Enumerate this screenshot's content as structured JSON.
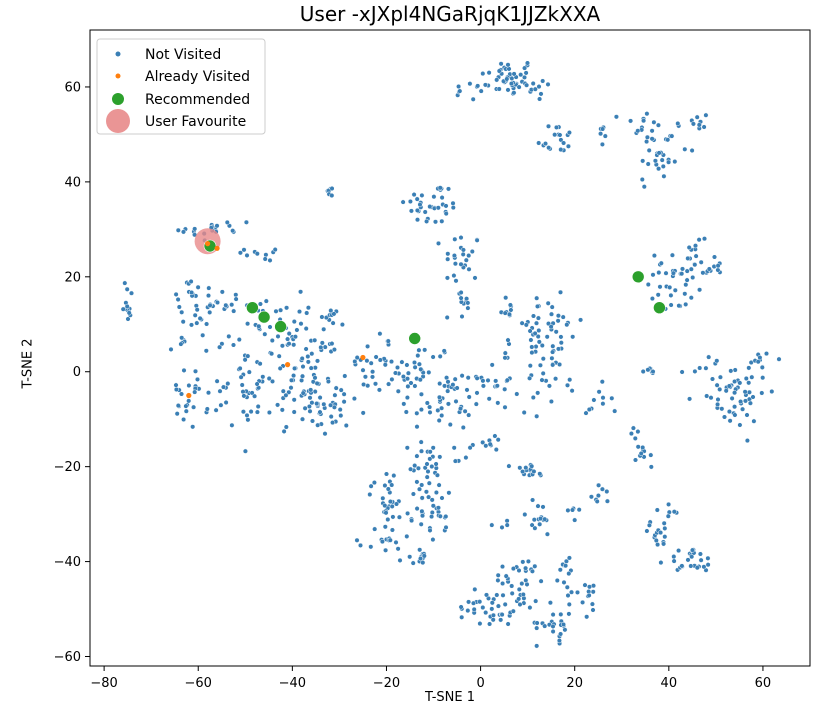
{
  "chart_data": {
    "type": "scatter",
    "title": "User -xJXpl4NGaRjqK1JJZkXXA",
    "xlabel": "T-SNE 1",
    "ylabel": "T-SNE 2",
    "xlim": [
      -83,
      70
    ],
    "ylim": [
      -62,
      72
    ],
    "xticks": [
      -80,
      -60,
      -40,
      -20,
      0,
      20,
      40,
      60
    ],
    "yticks": [
      -60,
      -40,
      -20,
      0,
      20,
      40,
      60
    ],
    "grid": false,
    "legend_position": "top-left",
    "colors": {
      "not_visited": "#3a7fb5",
      "already_visited": "#ff7f0e",
      "recommended": "#2ca02c",
      "user_favourite": "#e88a8a"
    },
    "series": [
      {
        "name": "Not Visited",
        "clusters": [
          {
            "cx": 6,
            "cy": 62,
            "sx": 3,
            "sy": 2,
            "n": 40
          },
          {
            "cx": -2,
            "cy": 59,
            "sx": 2,
            "sy": 1,
            "n": 10
          },
          {
            "cx": 12,
            "cy": 60,
            "sx": 2,
            "sy": 1.5,
            "n": 12
          },
          {
            "cx": 16,
            "cy": 49,
            "sx": 2,
            "sy": 2,
            "n": 18
          },
          {
            "cx": 34,
            "cy": 52,
            "sx": 2,
            "sy": 1.5,
            "n": 12
          },
          {
            "cx": 38,
            "cy": 46,
            "sx": 3,
            "sy": 4,
            "n": 30
          },
          {
            "cx": 45,
            "cy": 52,
            "sx": 2,
            "sy": 1.5,
            "n": 10
          },
          {
            "cx": 26,
            "cy": 51,
            "sx": 1,
            "sy": 1,
            "n": 5
          },
          {
            "cx": -32,
            "cy": 38,
            "sx": 0.5,
            "sy": 0.5,
            "n": 6
          },
          {
            "cx": -10,
            "cy": 35,
            "sx": 3,
            "sy": 2.5,
            "n": 35
          },
          {
            "cx": -4,
            "cy": 24,
            "sx": 2,
            "sy": 3,
            "n": 25
          },
          {
            "cx": 44,
            "cy": 22,
            "sx": 4,
            "sy": 2.5,
            "n": 45
          },
          {
            "cx": 40,
            "cy": 16,
            "sx": 2,
            "sy": 2,
            "n": 15
          },
          {
            "cx": -56,
            "cy": 30,
            "sx": 4,
            "sy": 1.5,
            "n": 20
          },
          {
            "cx": -46,
            "cy": 25,
            "sx": 2,
            "sy": 1.5,
            "n": 10
          },
          {
            "cx": -62,
            "cy": 16,
            "sx": 2,
            "sy": 1.5,
            "n": 15
          },
          {
            "cx": -75,
            "cy": 15,
            "sx": 0.7,
            "sy": 2.5,
            "n": 12
          },
          {
            "cx": -56,
            "cy": 14,
            "sx": 2,
            "sy": 2,
            "n": 15
          },
          {
            "cx": -46,
            "cy": 11,
            "sx": 4,
            "sy": 3,
            "n": 35
          },
          {
            "cx": -62,
            "cy": 7,
            "sx": 2,
            "sy": 3,
            "n": 15
          },
          {
            "cx": -38,
            "cy": 0,
            "sx": 4,
            "sy": 5,
            "n": 80
          },
          {
            "cx": -32,
            "cy": -8,
            "sx": 4,
            "sy": 3,
            "n": 35
          },
          {
            "cx": -50,
            "cy": -3,
            "sx": 3,
            "sy": 5,
            "n": 40
          },
          {
            "cx": -62,
            "cy": -6,
            "sx": 2,
            "sy": 3,
            "n": 25
          },
          {
            "cx": -34,
            "cy": 12,
            "sx": 2,
            "sy": 1,
            "n": 10
          },
          {
            "cx": -22,
            "cy": 2,
            "sx": 3,
            "sy": 3,
            "n": 30
          },
          {
            "cx": -12,
            "cy": 0,
            "sx": 3,
            "sy": 3,
            "n": 30
          },
          {
            "cx": -8,
            "cy": -6,
            "sx": 4,
            "sy": 3,
            "n": 40
          },
          {
            "cx": -4,
            "cy": 14,
            "sx": 1,
            "sy": 2,
            "n": 10
          },
          {
            "cx": 14,
            "cy": 8,
            "sx": 4,
            "sy": 4,
            "n": 50
          },
          {
            "cx": 6,
            "cy": 13,
            "sx": 1,
            "sy": 1.5,
            "n": 8
          },
          {
            "cx": 2,
            "cy": -2,
            "sx": 3,
            "sy": 3,
            "n": 20
          },
          {
            "cx": 14,
            "cy": -2,
            "sx": 3,
            "sy": 3,
            "n": 20
          },
          {
            "cx": 24,
            "cy": -7,
            "sx": 2,
            "sy": 2,
            "n": 10
          },
          {
            "cx": 36,
            "cy": 0,
            "sx": 1,
            "sy": 0.5,
            "n": 8
          },
          {
            "cx": 53,
            "cy": -4,
            "sx": 4,
            "sy": 4,
            "n": 60
          },
          {
            "cx": 59,
            "cy": 2,
            "sx": 2,
            "sy": 1,
            "n": 10
          },
          {
            "cx": 35,
            "cy": -17,
            "sx": 1,
            "sy": 1.5,
            "n": 10
          },
          {
            "cx": 33,
            "cy": -13,
            "sx": 0.5,
            "sy": 1,
            "n": 4
          },
          {
            "cx": 2,
            "cy": -14,
            "sx": 1,
            "sy": 2,
            "n": 8
          },
          {
            "cx": -5,
            "cy": -16,
            "sx": 1.5,
            "sy": 2,
            "n": 8
          },
          {
            "cx": -11,
            "cy": -20,
            "sx": 2,
            "sy": 3,
            "n": 25
          },
          {
            "cx": -20,
            "cy": -26,
            "sx": 2,
            "sy": 3,
            "n": 25
          },
          {
            "cx": -12,
            "cy": -30,
            "sx": 2,
            "sy": 3,
            "n": 25
          },
          {
            "cx": -20,
            "cy": -36,
            "sx": 2,
            "sy": 2,
            "n": 15
          },
          {
            "cx": -14,
            "cy": -39,
            "sx": 1.5,
            "sy": 1.5,
            "n": 12
          },
          {
            "cx": -8,
            "cy": -28,
            "sx": 1,
            "sy": 3,
            "n": 12
          },
          {
            "cx": 10,
            "cy": -21,
            "sx": 2,
            "sy": 1,
            "n": 15
          },
          {
            "cx": 12,
            "cy": -31,
            "sx": 2,
            "sy": 2,
            "n": 15
          },
          {
            "cx": 20,
            "cy": -30,
            "sx": 1,
            "sy": 1,
            "n": 5
          },
          {
            "cx": 26,
            "cy": -26,
            "sx": 1.5,
            "sy": 1,
            "n": 8
          },
          {
            "cx": 38,
            "cy": -34,
            "sx": 2,
            "sy": 1.5,
            "n": 15
          },
          {
            "cx": 40,
            "cy": -29,
            "sx": 1,
            "sy": 0.8,
            "n": 6
          },
          {
            "cx": 45,
            "cy": -40,
            "sx": 2.5,
            "sy": 1.5,
            "n": 25
          },
          {
            "cx": 8,
            "cy": -45,
            "sx": 3,
            "sy": 3,
            "n": 40
          },
          {
            "cx": 0,
            "cy": -49,
            "sx": 2.5,
            "sy": 2,
            "n": 20
          },
          {
            "cx": 16,
            "cy": -53,
            "sx": 2,
            "sy": 2,
            "n": 25
          },
          {
            "cx": 22,
            "cy": -47,
            "sx": 2,
            "sy": 2,
            "n": 15
          },
          {
            "cx": 18,
            "cy": -41,
            "sx": 2,
            "sy": 1.5,
            "n": 12
          },
          {
            "cx": 4,
            "cy": -52,
            "sx": 1.5,
            "sy": 1,
            "n": 8
          },
          {
            "cx": 4,
            "cy": -32,
            "sx": 1,
            "sy": 1,
            "n": 4
          },
          {
            "cx": 6,
            "cy": 5,
            "sx": 1,
            "sy": 1,
            "n": 5
          }
        ]
      },
      {
        "name": "Already Visited",
        "points": [
          [
            -58,
            27
          ],
          [
            -56,
            26
          ],
          [
            -41,
            1.5
          ],
          [
            -62,
            -5
          ],
          [
            -25,
            3
          ]
        ]
      },
      {
        "name": "Recommended",
        "points": [
          [
            -57.5,
            26.5
          ],
          [
            -48.5,
            13.5
          ],
          [
            -46,
            11.5
          ],
          [
            -42.5,
            9.5
          ],
          [
            -14,
            7
          ],
          [
            33.5,
            20
          ],
          [
            38,
            13.5
          ]
        ]
      },
      {
        "name": "User Favourite",
        "points": [
          [
            -58,
            27.5
          ]
        ]
      }
    ]
  }
}
